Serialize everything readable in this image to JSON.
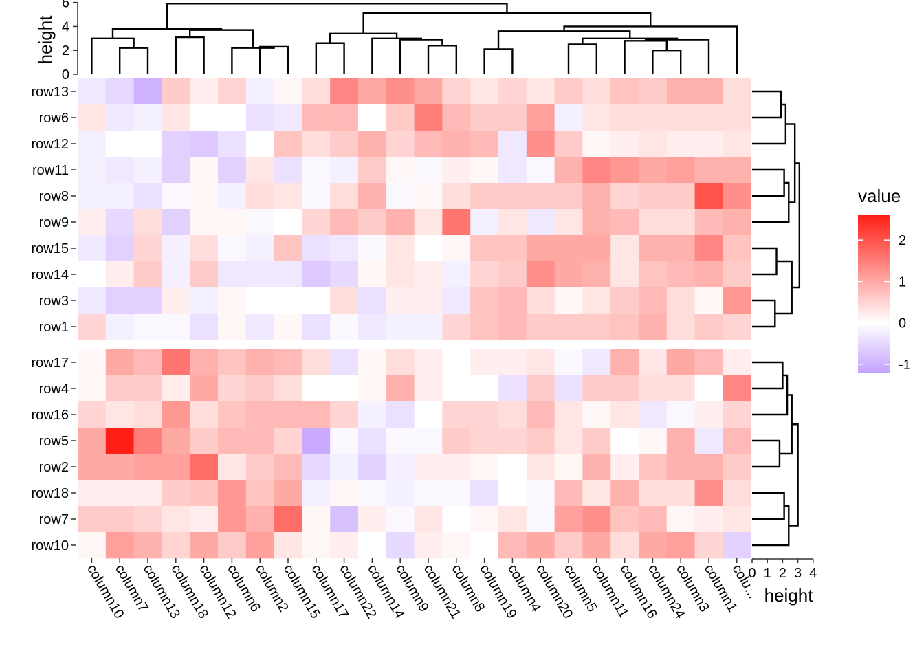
{
  "chart_data": {
    "type": "heatmap",
    "title": "",
    "columns": [
      "column10",
      "column7",
      "column13",
      "column18",
      "column12",
      "column6",
      "column2",
      "column15",
      "column17",
      "column22",
      "column14",
      "column9",
      "column21",
      "column8",
      "column19",
      "column4",
      "column20",
      "column5",
      "column11",
      "column16",
      "column24",
      "column3",
      "column1",
      "colu..."
    ],
    "row_groups": [
      {
        "rows": [
          "row13",
          "row6",
          "row12",
          "row11",
          "row8",
          "row9",
          "row15",
          "row14",
          "row3",
          "row1"
        ]
      },
      {
        "rows": [
          "row17",
          "row4",
          "row16",
          "row5",
          "row2",
          "row18",
          "row7",
          "row10"
        ]
      }
    ],
    "values": [
      [
        -0.3,
        -0.5,
        -1.0,
        0.6,
        0.2,
        0.5,
        -0.2,
        0.1,
        0.4,
        1.4,
        1.0,
        1.3,
        1.0,
        0.5,
        0.3,
        0.5,
        0.3,
        0.6,
        0.4,
        0.7,
        0.6,
        0.9,
        0.9,
        0.4
      ],
      [
        0.3,
        -0.3,
        -0.2,
        0.3,
        0.0,
        0.0,
        -0.4,
        -0.3,
        0.8,
        0.8,
        0.0,
        0.6,
        1.5,
        0.8,
        0.6,
        0.6,
        1.1,
        -0.2,
        0.3,
        0.4,
        0.4,
        0.4,
        0.4,
        0.4
      ],
      [
        -0.2,
        0.0,
        0.0,
        -0.6,
        -0.7,
        -0.4,
        0.0,
        0.7,
        0.4,
        0.6,
        0.9,
        0.5,
        0.8,
        0.9,
        0.8,
        -0.3,
        1.3,
        0.6,
        0.1,
        0.2,
        0.3,
        0.2,
        0.2,
        0.3
      ],
      [
        -0.2,
        -0.3,
        -0.2,
        -0.6,
        0.1,
        -0.6,
        0.3,
        -0.4,
        -0.1,
        -0.2,
        0.6,
        0.1,
        -0.1,
        0.2,
        0.1,
        -0.3,
        -0.1,
        0.9,
        1.4,
        1.2,
        1.0,
        1.1,
        0.9,
        0.9
      ],
      [
        -0.2,
        -0.2,
        -0.4,
        -0.1,
        0.1,
        -0.2,
        0.4,
        0.3,
        -0.1,
        0.4,
        0.9,
        -0.1,
        0.1,
        0.4,
        0.6,
        0.6,
        0.6,
        0.6,
        0.9,
        0.5,
        0.6,
        0.6,
        2.0,
        1.3
      ],
      [
        0.2,
        -0.5,
        0.4,
        -0.6,
        0.1,
        0.1,
        -0.1,
        0.0,
        0.5,
        0.8,
        0.6,
        0.9,
        0.3,
        1.6,
        -0.2,
        0.3,
        -0.3,
        0.3,
        0.9,
        0.8,
        0.4,
        0.4,
        0.8,
        0.9
      ],
      [
        -0.3,
        -0.6,
        0.5,
        -0.2,
        0.4,
        -0.1,
        -0.2,
        0.7,
        -0.4,
        -0.3,
        -0.1,
        0.3,
        0.0,
        0.1,
        0.7,
        0.7,
        1.0,
        1.0,
        1.0,
        0.3,
        0.9,
        0.9,
        1.4,
        0.7
      ],
      [
        0.0,
        0.2,
        0.6,
        -0.2,
        0.6,
        -0.3,
        -0.3,
        -0.3,
        -0.7,
        -0.5,
        0.1,
        0.3,
        0.2,
        -0.2,
        0.5,
        0.6,
        1.3,
        1.0,
        0.9,
        0.3,
        0.7,
        0.8,
        0.9,
        0.6
      ],
      [
        -0.3,
        -0.6,
        -0.6,
        0.2,
        -0.2,
        0.1,
        0.0,
        0.0,
        0.0,
        0.4,
        -0.4,
        0.2,
        0.2,
        -0.3,
        0.7,
        0.8,
        0.4,
        0.1,
        0.3,
        0.6,
        0.8,
        0.4,
        0.1,
        1.2
      ],
      [
        0.5,
        -0.2,
        -0.1,
        -0.1,
        -0.4,
        0.1,
        -0.3,
        0.1,
        -0.4,
        -0.1,
        -0.3,
        -0.2,
        -0.2,
        0.5,
        0.7,
        0.8,
        0.6,
        0.6,
        0.6,
        0.7,
        0.9,
        0.4,
        0.6,
        0.5
      ],
      [
        0.1,
        1.0,
        0.8,
        1.6,
        0.9,
        0.7,
        0.9,
        0.8,
        0.4,
        -0.4,
        0.1,
        0.4,
        0.2,
        0.0,
        0.2,
        0.2,
        0.3,
        -0.1,
        -0.3,
        0.9,
        0.3,
        1.0,
        0.8,
        0.2
      ],
      [
        0.1,
        0.6,
        0.6,
        0.2,
        1.0,
        0.5,
        0.6,
        0.4,
        0.0,
        0.0,
        0.1,
        0.9,
        0.2,
        0.0,
        0.0,
        -0.4,
        0.6,
        -0.4,
        0.6,
        0.6,
        0.4,
        0.4,
        0.0,
        1.4
      ],
      [
        0.5,
        0.3,
        0.4,
        1.2,
        0.4,
        0.7,
        0.8,
        0.8,
        0.8,
        0.5,
        -0.2,
        -0.4,
        0.0,
        0.5,
        0.5,
        0.4,
        0.8,
        0.3,
        0.1,
        0.3,
        -0.3,
        -0.1,
        0.2,
        0.5
      ],
      [
        1.0,
        2.6,
        1.5,
        1.0,
        0.6,
        0.8,
        0.8,
        0.5,
        -1.1,
        -0.1,
        -0.4,
        -0.1,
        -0.1,
        0.6,
        0.5,
        0.5,
        0.6,
        0.3,
        0.6,
        0.0,
        0.1,
        0.9,
        -0.3,
        0.8
      ],
      [
        1.0,
        1.0,
        1.1,
        1.1,
        1.7,
        0.3,
        0.6,
        0.8,
        -0.5,
        -0.2,
        -0.6,
        -0.2,
        0.2,
        0.2,
        0.1,
        0.0,
        0.3,
        0.1,
        0.9,
        0.2,
        0.7,
        0.9,
        0.9,
        0.6
      ],
      [
        0.2,
        0.2,
        0.2,
        0.6,
        0.7,
        1.2,
        0.7,
        1.0,
        -0.2,
        0.1,
        -0.1,
        -0.2,
        -0.1,
        -0.1,
        -0.4,
        0.0,
        -0.1,
        0.8,
        0.3,
        0.9,
        0.4,
        0.4,
        1.3,
        0.4
      ],
      [
        0.6,
        0.6,
        0.5,
        0.3,
        0.2,
        1.2,
        0.9,
        1.7,
        0.1,
        -0.8,
        0.2,
        -0.1,
        0.3,
        0.0,
        0.1,
        0.3,
        -0.1,
        1.1,
        1.3,
        0.7,
        0.8,
        0.1,
        0.2,
        0.3
      ],
      [
        0.1,
        1.1,
        0.9,
        0.5,
        1.0,
        0.6,
        1.1,
        0.3,
        0.1,
        0.2,
        0.0,
        -0.5,
        0.2,
        0.1,
        0.0,
        0.8,
        1.0,
        0.6,
        1.0,
        0.4,
        1.0,
        1.1,
        0.5,
        -0.6
      ]
    ],
    "color_scale": {
      "title": "value",
      "low": "#c4a2ff",
      "mid": "#ffffff",
      "high": "#ff1f16",
      "min": -1.2,
      "mid_value": 0,
      "max": 2.6,
      "ticks": [
        -1,
        0,
        1,
        2
      ]
    },
    "top_dendrogram_axis": {
      "label": "height",
      "ticks": [
        0,
        2,
        4,
        6
      ],
      "range": [
        0,
        6
      ]
    },
    "right_dendrogram_axis": {
      "label": "height",
      "ticks": [
        0,
        1,
        2,
        3,
        4
      ],
      "range": [
        0,
        4
      ]
    },
    "column_dendrogram": {
      "merges": [
        {
          "a": "column13",
          "b": "column7",
          "height": 2.2
        },
        {
          "a": "column10",
          "b": "c7-13",
          "height": 3.0
        },
        {
          "a": "column18",
          "b": "column12",
          "height": 3.1
        },
        {
          "a": "column2",
          "b": "column15",
          "height": 2.3
        },
        {
          "a": "column6",
          "b": "c2-15",
          "height": 2.2
        },
        {
          "a": "c18-12",
          "b": "c6-2-15",
          "height": 3.7
        },
        {
          "a": "c10-7-13",
          "b": "c18-15",
          "height": 3.8
        },
        {
          "a": "column17",
          "b": "column22",
          "height": 2.6
        },
        {
          "a": "column21",
          "b": "column8",
          "height": 2.4
        },
        {
          "a": "column9",
          "b": "c21-8",
          "height": 2.9
        },
        {
          "a": "column14",
          "b": "c9-8",
          "height": 3.0
        },
        {
          "a": "c17-22",
          "b": "c14-8",
          "height": 3.4
        },
        {
          "a": "column19",
          "b": "column4",
          "height": 2.1
        },
        {
          "a": "column5",
          "b": "column11",
          "height": 2.5
        },
        {
          "a": "column24",
          "b": "column3",
          "height": 2.0
        },
        {
          "a": "column16",
          "b": "c24-3",
          "height": 2.8
        },
        {
          "a": "c16-3",
          "b": "column1",
          "height": 2.9
        },
        {
          "a": "c5-11",
          "b": "c16-1",
          "height": 3.0
        },
        {
          "a": "c19-4",
          "b": "c5-1",
          "height": 3.6
        },
        {
          "a": "c19-1",
          "b": "colu...",
          "height": 4.0
        },
        {
          "a": "c17-8",
          "b": "c19-last",
          "height": 5.1
        },
        {
          "a": "c10-15",
          "b": "c17-last",
          "height": 5.9
        }
      ]
    },
    "row_dendrogram": {
      "merges": [
        {
          "a": "row13",
          "b": "row6",
          "height": 1.9
        },
        {
          "a": "c13-6",
          "b": "row12",
          "height": 2.2
        },
        {
          "a": "row11",
          "b": "row8",
          "height": 2.1
        },
        {
          "a": "row9",
          "b": "c11-8",
          "height": 2.4
        },
        {
          "a": "c13-12",
          "b": "c9-8",
          "height": 2.8
        },
        {
          "a": "row15",
          "b": "row14",
          "height": 1.6
        },
        {
          "a": "row3",
          "b": "row1",
          "height": 1.5
        },
        {
          "a": "c15-14",
          "b": "c3-1",
          "height": 2.6
        },
        {
          "a": "c13-8",
          "b": "c15-1",
          "height": 3.1
        },
        {
          "a": "row17",
          "b": "row4",
          "height": 2.0
        },
        {
          "a": "c17-4",
          "b": "row16",
          "height": 2.3
        },
        {
          "a": "row5",
          "b": "row2",
          "height": 1.8
        },
        {
          "a": "c17-16",
          "b": "c5-2",
          "height": 2.6
        },
        {
          "a": "row18",
          "b": "row7",
          "height": 2.1
        },
        {
          "a": "c18-7",
          "b": "row10",
          "height": 2.4
        },
        {
          "a": "c17-2",
          "b": "c18-10",
          "height": 3.0
        }
      ]
    }
  }
}
